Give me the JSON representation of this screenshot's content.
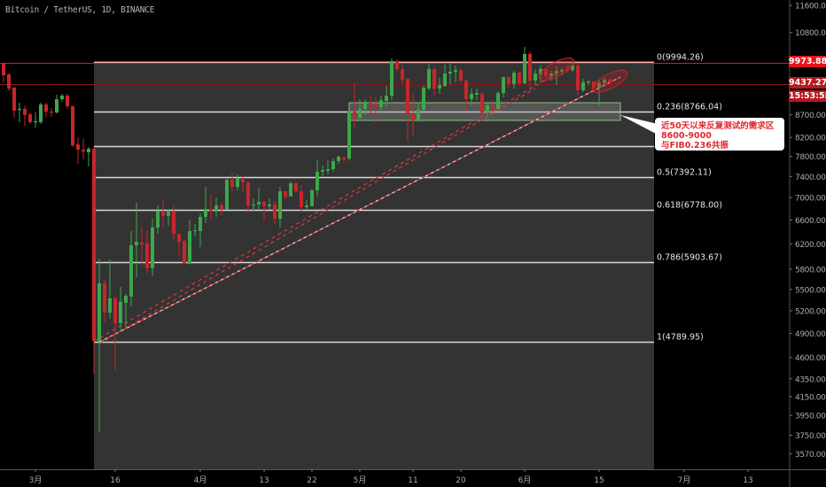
{
  "header": {
    "title": "Bitcoin / TetherUS, 1D, BINANCE"
  },
  "price_tags": {
    "line_price": "9973.88",
    "last_price": "9437.27",
    "countdown": "15:53:55"
  },
  "colors": {
    "up": "#3da74a",
    "down": "#c8262b",
    "fib_bg": "#333333",
    "fib_line": "#d8d8d8",
    "trend": "#e0383e",
    "axis_text": "#aaaaaa",
    "line_red": "#e8141b",
    "last_price_red": "#b8191e"
  },
  "annotation": {
    "text_line1": "近50天以来反复测试的需求区8600-9000",
    "text_line2": "与FIB0.236共振"
  },
  "chart_data": {
    "type": "candlestick",
    "title": "Bitcoin / TetherUS, 1D, BINANCE",
    "y_scale": "log",
    "ylim": [
      3480,
      11800
    ],
    "grid": false,
    "y_ticks": [
      "11600.00",
      "10800.00",
      "8700.00",
      "8200.00",
      "7800.00",
      "7400.00",
      "7000.00",
      "6600.00",
      "6200.00",
      "5800.00",
      "5500.00",
      "5200.00",
      "4900.00",
      "4600.00",
      "4350.00",
      "4150.00",
      "3950.00",
      "3750.00",
      "3570.00"
    ],
    "x_ticks": [
      {
        "date": "03-01",
        "label": "3月"
      },
      {
        "date": "03-16",
        "label": "16"
      },
      {
        "date": "04-01",
        "label": "4月"
      },
      {
        "date": "04-13",
        "label": "13"
      },
      {
        "date": "04-22",
        "label": "22"
      },
      {
        "date": "05-01",
        "label": "5月"
      },
      {
        "date": "05-11",
        "label": "11"
      },
      {
        "date": "05-20",
        "label": "20"
      },
      {
        "date": "06-01",
        "label": "6月"
      },
      {
        "date": "06-15",
        "label": "15"
      },
      {
        "date": "07-01",
        "label": "7月"
      },
      {
        "date": "07-13",
        "label": "13"
      }
    ],
    "candles_columns": [
      "date",
      "open",
      "high",
      "low",
      "close"
    ],
    "candles": [
      [
        "02-24",
        9950,
        9973,
        9476,
        9653
      ],
      [
        "02-25",
        9676,
        9698,
        9257,
        9322
      ],
      [
        "02-26",
        9344,
        9366,
        8634,
        8795
      ],
      [
        "02-27",
        8816,
        8981,
        8534,
        8836
      ],
      [
        "02-28",
        8836,
        8919,
        8455,
        8694
      ],
      [
        "02-29",
        8714,
        8755,
        8494,
        8534
      ],
      [
        "03-01",
        8534,
        8755,
        8416,
        8554
      ],
      [
        "03-02",
        8534,
        8981,
        8494,
        8939
      ],
      [
        "03-03",
        8939,
        8981,
        8654,
        8775
      ],
      [
        "03-04",
        8775,
        8857,
        8654,
        8755
      ],
      [
        "03-05",
        8755,
        9171,
        8734,
        9065
      ],
      [
        "03-06",
        9065,
        9193,
        9002,
        9150
      ],
      [
        "03-07",
        9150,
        9193,
        8836,
        8898
      ],
      [
        "03-08",
        8898,
        8919,
        7996,
        8033
      ],
      [
        "03-09",
        8052,
        8203,
        7651,
        7940
      ],
      [
        "03-10",
        7940,
        8165,
        7740,
        7903
      ],
      [
        "03-11",
        7885,
        7996,
        7598,
        7959
      ],
      [
        "03-12",
        7959,
        7977,
        4409,
        4805
      ],
      [
        "03-13",
        4805,
        5965,
        3781,
        5589
      ],
      [
        "03-14",
        5589,
        5641,
        5045,
        5176
      ],
      [
        "03-15",
        5176,
        5951,
        5092,
        5373
      ],
      [
        "03-16",
        5373,
        5398,
        4449,
        5034
      ],
      [
        "03-17",
        5034,
        5537,
        4918,
        5323
      ],
      [
        "03-18",
        5311,
        5435,
        4975,
        5410
      ],
      [
        "03-19",
        5398,
        6411,
        5262,
        6177
      ],
      [
        "03-20",
        6177,
        6906,
        5680,
        6235
      ],
      [
        "03-21",
        6220,
        6471,
        5855,
        6191
      ],
      [
        "03-22",
        6206,
        6426,
        5733,
        5815
      ],
      [
        "03-23",
        5815,
        6623,
        5693,
        6471
      ],
      [
        "03-24",
        6471,
        6858,
        6367,
        6764
      ],
      [
        "03-25",
        6748,
        6971,
        6456,
        6670
      ],
      [
        "03-26",
        6670,
        6779,
        6501,
        6748
      ],
      [
        "03-27",
        6748,
        6858,
        6264,
        6367
      ],
      [
        "03-28",
        6367,
        6367,
        6021,
        6235
      ],
      [
        "03-29",
        6249,
        6264,
        5883,
        5883
      ],
      [
        "03-30",
        5883,
        6608,
        5869,
        6411
      ],
      [
        "03-31",
        6411,
        6532,
        6322,
        6426
      ],
      [
        "04-01",
        6411,
        6716,
        6148,
        6654
      ],
      [
        "04-02",
        6654,
        7201,
        6547,
        6795
      ],
      [
        "04-03",
        6795,
        7052,
        6608,
        6748
      ],
      [
        "04-04",
        6748,
        7003,
        6654,
        6858
      ],
      [
        "04-05",
        6858,
        6890,
        6685,
        6779
      ],
      [
        "04-06",
        6779,
        7354,
        6779,
        7337
      ],
      [
        "04-07",
        7337,
        7475,
        7085,
        7201
      ],
      [
        "04-08",
        7201,
        7441,
        7135,
        7371
      ],
      [
        "04-09",
        7371,
        7388,
        7102,
        7286
      ],
      [
        "04-10",
        7286,
        7303,
        6732,
        6858
      ],
      [
        "04-11",
        6858,
        6987,
        6764,
        6874
      ],
      [
        "04-12",
        6874,
        7185,
        6779,
        6923
      ],
      [
        "04-13",
        6923,
        6939,
        6577,
        6843
      ],
      [
        "04-14",
        6843,
        6987,
        6779,
        6874
      ],
      [
        "04-15",
        6874,
        6939,
        6532,
        6623
      ],
      [
        "04-16",
        6623,
        7201,
        6471,
        7118
      ],
      [
        "04-17",
        7118,
        7135,
        6971,
        7020
      ],
      [
        "04-18",
        7020,
        7303,
        7020,
        7269
      ],
      [
        "04-19",
        7269,
        7286,
        7085,
        7118
      ],
      [
        "04-20",
        7118,
        7235,
        6764,
        6827
      ],
      [
        "04-21",
        6827,
        6955,
        6795,
        6858
      ],
      [
        "04-22",
        6843,
        7168,
        6843,
        7135
      ],
      [
        "04-23",
        7135,
        7740,
        7020,
        7493
      ],
      [
        "04-24",
        7493,
        7615,
        7406,
        7527
      ],
      [
        "04-25",
        7510,
        7722,
        7441,
        7545
      ],
      [
        "04-26",
        7545,
        7758,
        7493,
        7704
      ],
      [
        "04-27",
        7704,
        7812,
        7651,
        7794
      ],
      [
        "04-28",
        7776,
        7794,
        7669,
        7740
      ],
      [
        "04-29",
        7758,
        8795,
        7722,
        8795
      ],
      [
        "04-30",
        8775,
        9476,
        8396,
        8614
      ],
      [
        "05-01",
        8634,
        9065,
        8574,
        8836
      ],
      [
        "05-02",
        8836,
        9065,
        8694,
        9002
      ],
      [
        "05-03",
        8981,
        9171,
        8694,
        8898
      ],
      [
        "05-04",
        8919,
        9107,
        8514,
        8877
      ],
      [
        "05-05",
        8877,
        9150,
        8755,
        9044
      ],
      [
        "05-06",
        9023,
        9388,
        8898,
        9150
      ],
      [
        "05-07",
        9150,
        10089,
        9044,
        10019
      ],
      [
        "05-08",
        9996,
        10066,
        9743,
        9812
      ],
      [
        "05-09",
        9812,
        9927,
        9432,
        9542
      ],
      [
        "05-10",
        9564,
        9587,
        8127,
        8734
      ],
      [
        "05-11",
        8734,
        9193,
        8222,
        8574
      ],
      [
        "05-12",
        8574,
        8981,
        8534,
        8816
      ],
      [
        "05-13",
        8816,
        9388,
        8775,
        9344
      ],
      [
        "05-14",
        9322,
        9950,
        9279,
        9812
      ],
      [
        "05-15",
        9812,
        9858,
        9150,
        9322
      ],
      [
        "05-16",
        9322,
        9587,
        9193,
        9410
      ],
      [
        "05-17",
        9388,
        9927,
        9366,
        9698
      ],
      [
        "05-18",
        9698,
        9950,
        9432,
        9743
      ],
      [
        "05-19",
        9743,
        9904,
        9476,
        9789
      ],
      [
        "05-20",
        9789,
        9835,
        9476,
        9520
      ],
      [
        "05-21",
        9520,
        9542,
        8836,
        9065
      ],
      [
        "05-22",
        9065,
        9322,
        8919,
        9193
      ],
      [
        "05-23",
        9171,
        9322,
        9044,
        9214
      ],
      [
        "05-24",
        9193,
        9236,
        8694,
        8755
      ],
      [
        "05-25",
        8755,
        9002,
        8654,
        8919
      ],
      [
        "05-26",
        8919,
        9044,
        8755,
        8857
      ],
      [
        "05-27",
        8836,
        9257,
        8836,
        9214
      ],
      [
        "05-28",
        9214,
        9609,
        9107,
        9609
      ],
      [
        "05-29",
        9609,
        9631,
        9344,
        9432
      ],
      [
        "05-30",
        9432,
        9766,
        9322,
        9721
      ],
      [
        "05-31",
        9721,
        9743,
        9410,
        9454
      ],
      [
        "06-01",
        9454,
        10399,
        9432,
        10208
      ],
      [
        "06-02",
        10208,
        10280,
        9279,
        9520
      ],
      [
        "06-03",
        9520,
        9789,
        9410,
        9698
      ],
      [
        "06-04",
        9676,
        9904,
        9454,
        9812
      ],
      [
        "06-05",
        9812,
        9812,
        9564,
        9631
      ],
      [
        "06-06",
        9631,
        9766,
        9520,
        9698
      ],
      [
        "06-07",
        9698,
        9881,
        9410,
        9766
      ],
      [
        "06-08",
        9743,
        9835,
        9653,
        9789
      ],
      [
        "06-09",
        9812,
        9858,
        9721,
        9766
      ],
      [
        "06-10",
        9789,
        9996,
        9743,
        9904
      ],
      [
        "06-11",
        9904,
        9950,
        9150,
        9279
      ],
      [
        "06-12",
        9279,
        9564,
        9236,
        9476
      ],
      [
        "06-13",
        9476,
        9520,
        9410,
        9498
      ],
      [
        "06-14",
        9498,
        9498,
        9322,
        9344
      ],
      [
        "06-15",
        9344,
        9542,
        8919,
        9454
      ],
      [
        "06-16",
        9454,
        9587,
        9410,
        9542
      ],
      [
        "06-17",
        9542,
        9564,
        9410,
        9476
      ]
    ],
    "horizontal_lines": [
      {
        "price": 9973.88,
        "style": "solid",
        "color": "#e8141b"
      },
      {
        "price": 9437.27,
        "style": "solid",
        "color": "#8b1418"
      }
    ],
    "fib_retracement": {
      "start": {
        "date": "03-12",
        "price": 4789.95
      },
      "end": {
        "date": "06-22",
        "price": 9994.26
      },
      "levels": [
        {
          "ratio": "0",
          "price": 9994.26,
          "label": "0(9994.26)"
        },
        {
          "ratio": "0.236",
          "price": 8766.04,
          "label": "0.236(8766.04)"
        },
        {
          "ratio": "0.382",
          "price": 8006.22,
          "label": ""
        },
        {
          "ratio": "0.5",
          "price": 7392.11,
          "label": "0.5(7392.11)"
        },
        {
          "ratio": "0.618",
          "price": 6778.0,
          "label": "0.618(6778.00)"
        },
        {
          "ratio": "0.786",
          "price": 5903.67,
          "label": "0.786(5903.67)"
        },
        {
          "ratio": "1",
          "price": 4789.95,
          "label": "1(4789.95)"
        }
      ]
    },
    "trend_lines": [
      {
        "from": {
          "date": "03-13",
          "price": 4790
        },
        "to": {
          "date": "06-19",
          "price": 9608
        },
        "style": "solid-white-dashed"
      },
      {
        "from": {
          "date": "03-12",
          "price": 4800
        },
        "to": {
          "date": "06-10",
          "price": 9935
        },
        "style": "red-dashed"
      },
      {
        "from": {
          "date": "03-13",
          "price": 4770
        },
        "to": {
          "date": "06-03",
          "price": 9322
        },
        "style": "red-dashed"
      }
    ],
    "zone_rectangle": {
      "from": "04-29",
      "to": "06-19",
      "low": 8574,
      "high": 8981
    },
    "ellipses": [
      {
        "center": {
          "date": "06-07",
          "price": 9810
        }
      },
      {
        "center": {
          "date": "06-17",
          "price": 9500
        }
      }
    ]
  }
}
